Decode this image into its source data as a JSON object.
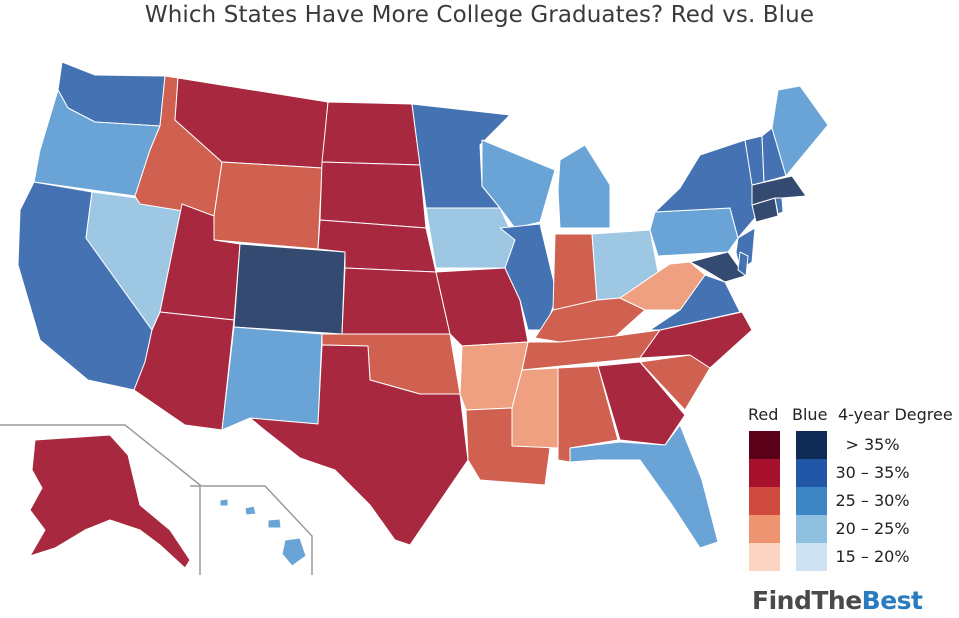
{
  "title": "Which States Have More College Graduates? Red vs. Blue",
  "legend": {
    "red_label": "Red",
    "blue_label": "Blue",
    "degree_label": "4-year Degree",
    "ranges": [
      "> 35%",
      "30 – 35%",
      "25 – 30%",
      "20 – 25%",
      "15 – 20%"
    ],
    "red_colors": [
      "#5a0018",
      "#a8112e",
      "#cf4b3f",
      "#ee9470",
      "#fbd5c1"
    ],
    "blue_colors": [
      "#0f2a55",
      "#2257a7",
      "#3b86c3",
      "#8fbfdf",
      "#cfe2f1"
    ]
  },
  "colors": {
    "red_high": "#a8283f",
    "red_mid": "#d0604f",
    "red_low": "#efa081",
    "blue_darkest": "#344a70",
    "blue_high": "#4472b3",
    "blue_mid": "#6aa3d5",
    "blue_low": "#9dc7e3"
  },
  "logo": {
    "part1": "FindThe",
    "part2": "Best"
  }
}
